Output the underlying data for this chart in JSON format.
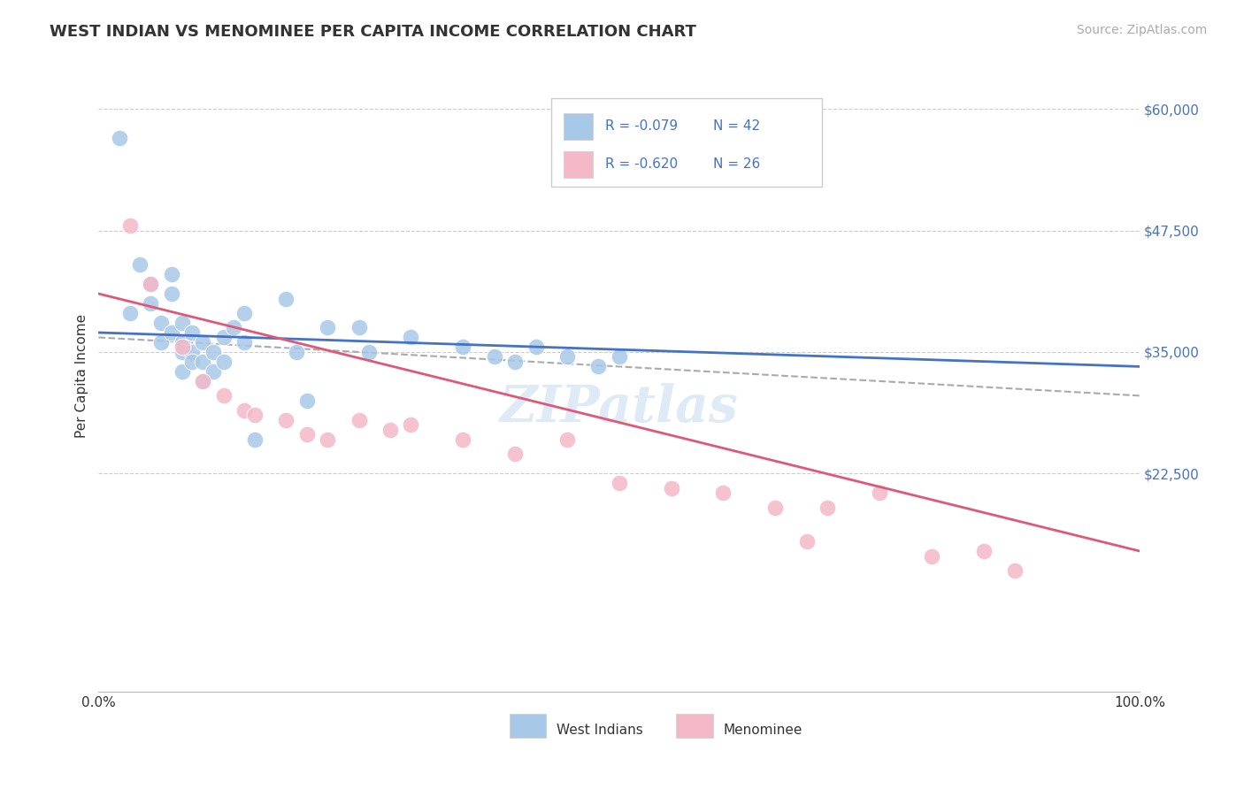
{
  "title": "WEST INDIAN VS MENOMINEE PER CAPITA INCOME CORRELATION CHART",
  "source": "Source: ZipAtlas.com",
  "ylabel": "Per Capita Income",
  "ymin": 0,
  "ymax": 65000,
  "xmin": 0,
  "xmax": 100,
  "ytick_positions": [
    22500,
    35000,
    47500,
    60000
  ],
  "ytick_labels": [
    "$22,500",
    "$35,000",
    "$47,500",
    "$60,000"
  ],
  "watermark_text": "ZIPatlas",
  "legend_r1": "R = -0.079",
  "legend_n1": "N = 42",
  "legend_r2": "R = -0.620",
  "legend_n2": "N = 26",
  "legend_label1": "West Indians",
  "legend_label2": "Menominee",
  "blue_color": "#a8c8e8",
  "pink_color": "#f4b8c8",
  "line_blue": "#4472c4",
  "line_pink": "#e05878",
  "text_blue": "#4472c4",
  "axis_color": "#4472c4",
  "grid_color": "#cccccc",
  "west_indians_x": [
    2,
    3,
    4,
    5,
    5,
    6,
    6,
    7,
    7,
    7,
    8,
    8,
    8,
    8,
    9,
    9,
    9,
    10,
    10,
    10,
    11,
    11,
    12,
    12,
    13,
    14,
    14,
    15,
    18,
    19,
    20,
    22,
    25,
    26,
    30,
    35,
    38,
    40,
    42,
    45,
    48,
    50
  ],
  "west_indians_y": [
    57000,
    39000,
    44000,
    42000,
    40000,
    38000,
    36000,
    43000,
    41000,
    37000,
    38000,
    36000,
    35000,
    33000,
    37000,
    35000,
    34000,
    36000,
    34000,
    32000,
    35000,
    33000,
    36500,
    34000,
    37500,
    39000,
    36000,
    26000,
    40500,
    35000,
    30000,
    37500,
    37500,
    35000,
    36500,
    35500,
    34500,
    34000,
    35500,
    34500,
    33500,
    34500
  ],
  "menominee_x": [
    3,
    5,
    8,
    10,
    12,
    14,
    15,
    18,
    20,
    22,
    25,
    28,
    30,
    35,
    40,
    45,
    50,
    55,
    60,
    65,
    68,
    70,
    75,
    80,
    85,
    88
  ],
  "menominee_y": [
    48000,
    42000,
    35500,
    32000,
    30500,
    29000,
    28500,
    28000,
    26500,
    26000,
    28000,
    27000,
    27500,
    26000,
    24500,
    26000,
    21500,
    21000,
    20500,
    19000,
    15500,
    19000,
    20500,
    14000,
    14500,
    12500
  ],
  "blue_trendline_x": [
    0,
    100
  ],
  "blue_trendline_y": [
    37000,
    33500
  ],
  "pink_trendline_x": [
    0,
    100
  ],
  "pink_trendline_y": [
    41000,
    14500
  ],
  "dashed_line_x": [
    0,
    100
  ],
  "dashed_line_y": [
    36500,
    30500
  ]
}
